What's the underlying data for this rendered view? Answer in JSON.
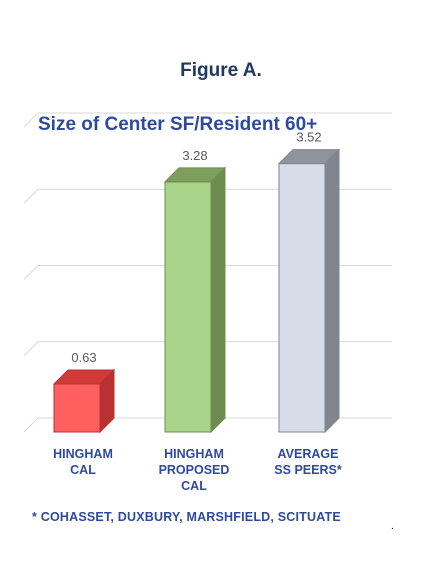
{
  "figure_label": "Figure A.",
  "chart_data": {
    "type": "bar",
    "title": "Size of Center SF/Resident 60+",
    "categories": [
      [
        "HINGHAM",
        "CAL"
      ],
      [
        "HINGHAM",
        "PROPOSED",
        "CAL"
      ],
      [
        "AVERAGE",
        "SS PEERS*"
      ]
    ],
    "values": [
      0.63,
      3.28,
      3.52
    ],
    "value_labels": [
      "0.63",
      "3.28",
      "3.52"
    ],
    "bar_colors": [
      {
        "front": "#ff5f5f",
        "top": "#d23a3a",
        "side": "#b83232"
      },
      {
        "front": "#a9d58a",
        "top": "#7e9e5e",
        "side": "#6e8c50"
      },
      {
        "front": "#d7dde8",
        "top": "#8e939c",
        "side": "#80858f"
      }
    ],
    "ylim": [
      0,
      4
    ],
    "grid": true,
    "footnote": "* COHASSET, DUXBURY, MARSHFIELD, SCITUATE"
  },
  "trailing_mark": "."
}
